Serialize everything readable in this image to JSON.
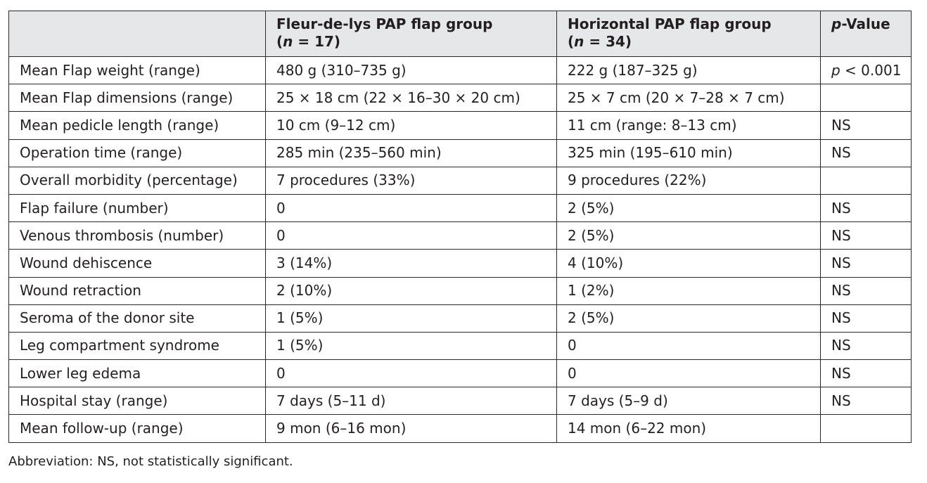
{
  "header": {
    "col1": "",
    "col2_title": "Fleur-de-lys PAP flap group",
    "col2_n_prefix": "(",
    "col2_n_var": "n",
    "col2_n_value": " = 17)",
    "col3_title": "Horizontal PAP flap group",
    "col3_n_prefix": "(",
    "col3_n_var": "n",
    "col3_n_value": " = 34)",
    "col4_var": "p",
    "col4_rest": "-Value"
  },
  "rows": [
    {
      "label": "Mean Flap weight (range)",
      "fleur": "480 g (310–735 g)",
      "horizontal": "222 g (187–325 g)",
      "p_var": "p",
      "p_rest": " < 0.001"
    },
    {
      "label": "Mean Flap dimensions (range)",
      "fleur": "25 × 18 cm (22 × 16–30 × 20 cm)",
      "horizontal": "25 × 7 cm (20 × 7–28 × 7 cm)",
      "p_var": "",
      "p_rest": ""
    },
    {
      "label": "Mean pedicle length (range)",
      "fleur": "10 cm (9–12 cm)",
      "horizontal": "11 cm (range: 8–13 cm)",
      "p_var": "",
      "p_rest": "NS"
    },
    {
      "label": "Operation time (range)",
      "fleur": "285 min (235–560 min)",
      "horizontal": "325 min (195–610 min)",
      "p_var": "",
      "p_rest": "NS"
    },
    {
      "label": "Overall morbidity (percentage)",
      "fleur": "7 procedures (33%)",
      "horizontal": "9 procedures (22%)",
      "p_var": "",
      "p_rest": ""
    },
    {
      "label": "Flap failure (number)",
      "fleur": "0",
      "horizontal": "2 (5%)",
      "p_var": "",
      "p_rest": "NS"
    },
    {
      "label": "Venous thrombosis (number)",
      "fleur": "0",
      "horizontal": "2 (5%)",
      "p_var": "",
      "p_rest": "NS"
    },
    {
      "label": "Wound dehiscence",
      "fleur": "3 (14%)",
      "horizontal": "4 (10%)",
      "p_var": "",
      "p_rest": "NS"
    },
    {
      "label": "Wound retraction",
      "fleur": "2 (10%)",
      "horizontal": "1 (2%)",
      "p_var": "",
      "p_rest": "NS"
    },
    {
      "label": "Seroma of the donor site",
      "fleur": "1 (5%)",
      "horizontal": "2 (5%)",
      "p_var": "",
      "p_rest": "NS"
    },
    {
      "label": "Leg compartment syndrome",
      "fleur": "1 (5%)",
      "horizontal": "0",
      "p_var": "",
      "p_rest": "NS"
    },
    {
      "label": "Lower leg edema",
      "fleur": "0",
      "horizontal": "0",
      "p_var": "",
      "p_rest": "NS"
    },
    {
      "label": "Hospital stay (range)",
      "fleur": "7 days (5–11 d)",
      "horizontal": "7 days (5–9 d)",
      "p_var": "",
      "p_rest": "NS"
    },
    {
      "label": "Mean follow-up (range)",
      "fleur": "9 mon (6–16 mon)",
      "horizontal": "14 mon (6–22 mon)",
      "p_var": "",
      "p_rest": ""
    }
  ],
  "footnote": "Abbreviation: NS, not statistically significant.",
  "colors": {
    "header_background": "#e6e7e8",
    "border": "#2a2a2a",
    "text": "#231f20"
  }
}
